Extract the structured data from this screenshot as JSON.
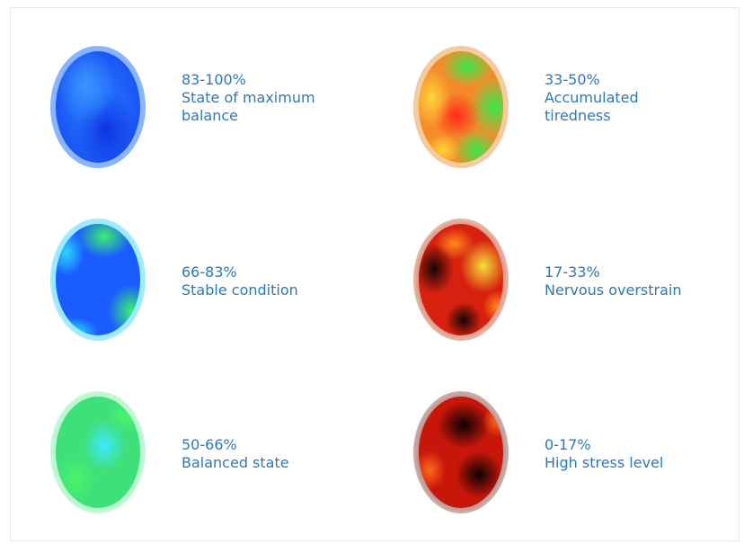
{
  "states": [
    {
      "range": "83-100%",
      "desc_lines": [
        "State of maximum",
        "balance"
      ],
      "orb_icon": "blue-aura-orb-icon",
      "rim": "#7aa8ff",
      "base": "#1a5cff"
    },
    {
      "range": "33-50%",
      "desc_lines": [
        "Accumulated",
        "tiredness"
      ],
      "orb_icon": "orange-green-aura-orb-icon",
      "rim": "#f4c27a",
      "base": "#f08a2a"
    },
    {
      "range": "66-83%",
      "desc_lines": [
        "Stable condition"
      ],
      "orb_icon": "blue-green-aura-orb-icon",
      "rim": "#7fe8ff",
      "base": "#1f6bff"
    },
    {
      "range": "17-33%",
      "desc_lines": [
        "Nervous overstrain"
      ],
      "orb_icon": "red-black-aura-orb-icon",
      "rim": "#d0807a",
      "base": "#c81e0f"
    },
    {
      "range": "50-66%",
      "desc_lines": [
        "Balanced state"
      ],
      "orb_icon": "green-aura-orb-icon",
      "rim": "#a8f0c0",
      "base": "#3ef06a"
    },
    {
      "range": "0-17%",
      "desc_lines": [
        "High stress level"
      ],
      "orb_icon": "dark-red-aura-orb-icon",
      "rim": "#b88a86",
      "base": "#b3140a"
    }
  ]
}
